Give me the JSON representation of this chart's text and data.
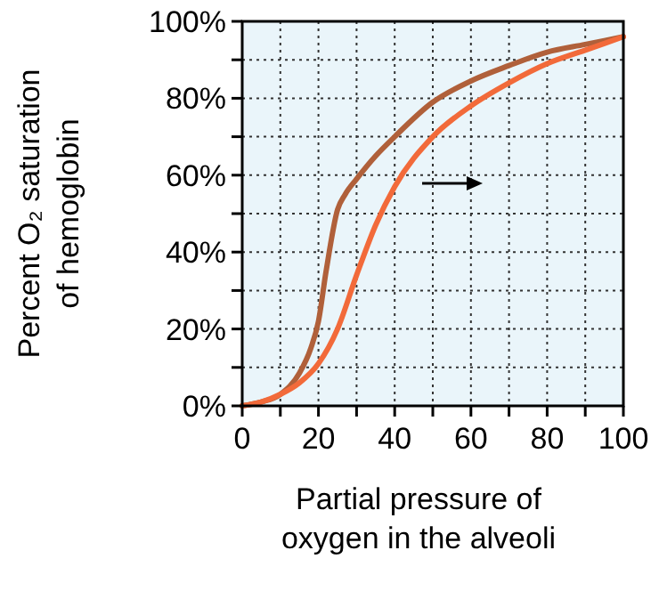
{
  "chart_data": {
    "type": "line",
    "xlabel": "Partial pressure of\noxygen in the alveoli",
    "ylabel": "Percent O₂ saturation\nof hemoglobin",
    "xlim": [
      0,
      100
    ],
    "ylim": [
      0,
      100
    ],
    "xticks": [
      0,
      {
        "value": 10,
        "label": null
      },
      20,
      {
        "value": 30,
        "label": null
      },
      40,
      {
        "value": 50,
        "label": null
      },
      60,
      {
        "value": 70,
        "label": null
      },
      80,
      {
        "value": 90,
        "label": null
      },
      100
    ],
    "yticks": [
      {
        "value": 0,
        "label": "0%"
      },
      {
        "value": 10,
        "label": null
      },
      {
        "value": 20,
        "label": "20%"
      },
      {
        "value": 30,
        "label": null
      },
      {
        "value": 40,
        "label": "40%"
      },
      {
        "value": 50,
        "label": null
      },
      {
        "value": 60,
        "label": "60%"
      },
      {
        "value": 70,
        "label": null
      },
      {
        "value": 80,
        "label": "80%"
      },
      {
        "value": 90,
        "label": null
      },
      {
        "value": 100,
        "label": "100%"
      }
    ],
    "grid": true,
    "line_style": "solid",
    "series": [
      {
        "color": "#b0603a",
        "x": [
          0,
          5,
          10,
          15,
          18,
          20,
          22,
          25,
          27,
          30,
          35,
          40,
          50,
          60,
          70,
          80,
          90,
          100
        ],
        "values": [
          0,
          1,
          3,
          8.5,
          15,
          22,
          35,
          51,
          55,
          59,
          65,
          70,
          79,
          84.5,
          88.5,
          92,
          94,
          96
        ]
      },
      {
        "color": "#f26a3a",
        "x": [
          0,
          5,
          10,
          15,
          20,
          25,
          30,
          35,
          40,
          50,
          60,
          70,
          80,
          90,
          100
        ],
        "values": [
          0,
          1,
          3,
          6,
          11,
          20,
          34,
          47,
          57,
          70,
          78,
          84,
          89,
          92.5,
          96
        ]
      }
    ]
  }
}
